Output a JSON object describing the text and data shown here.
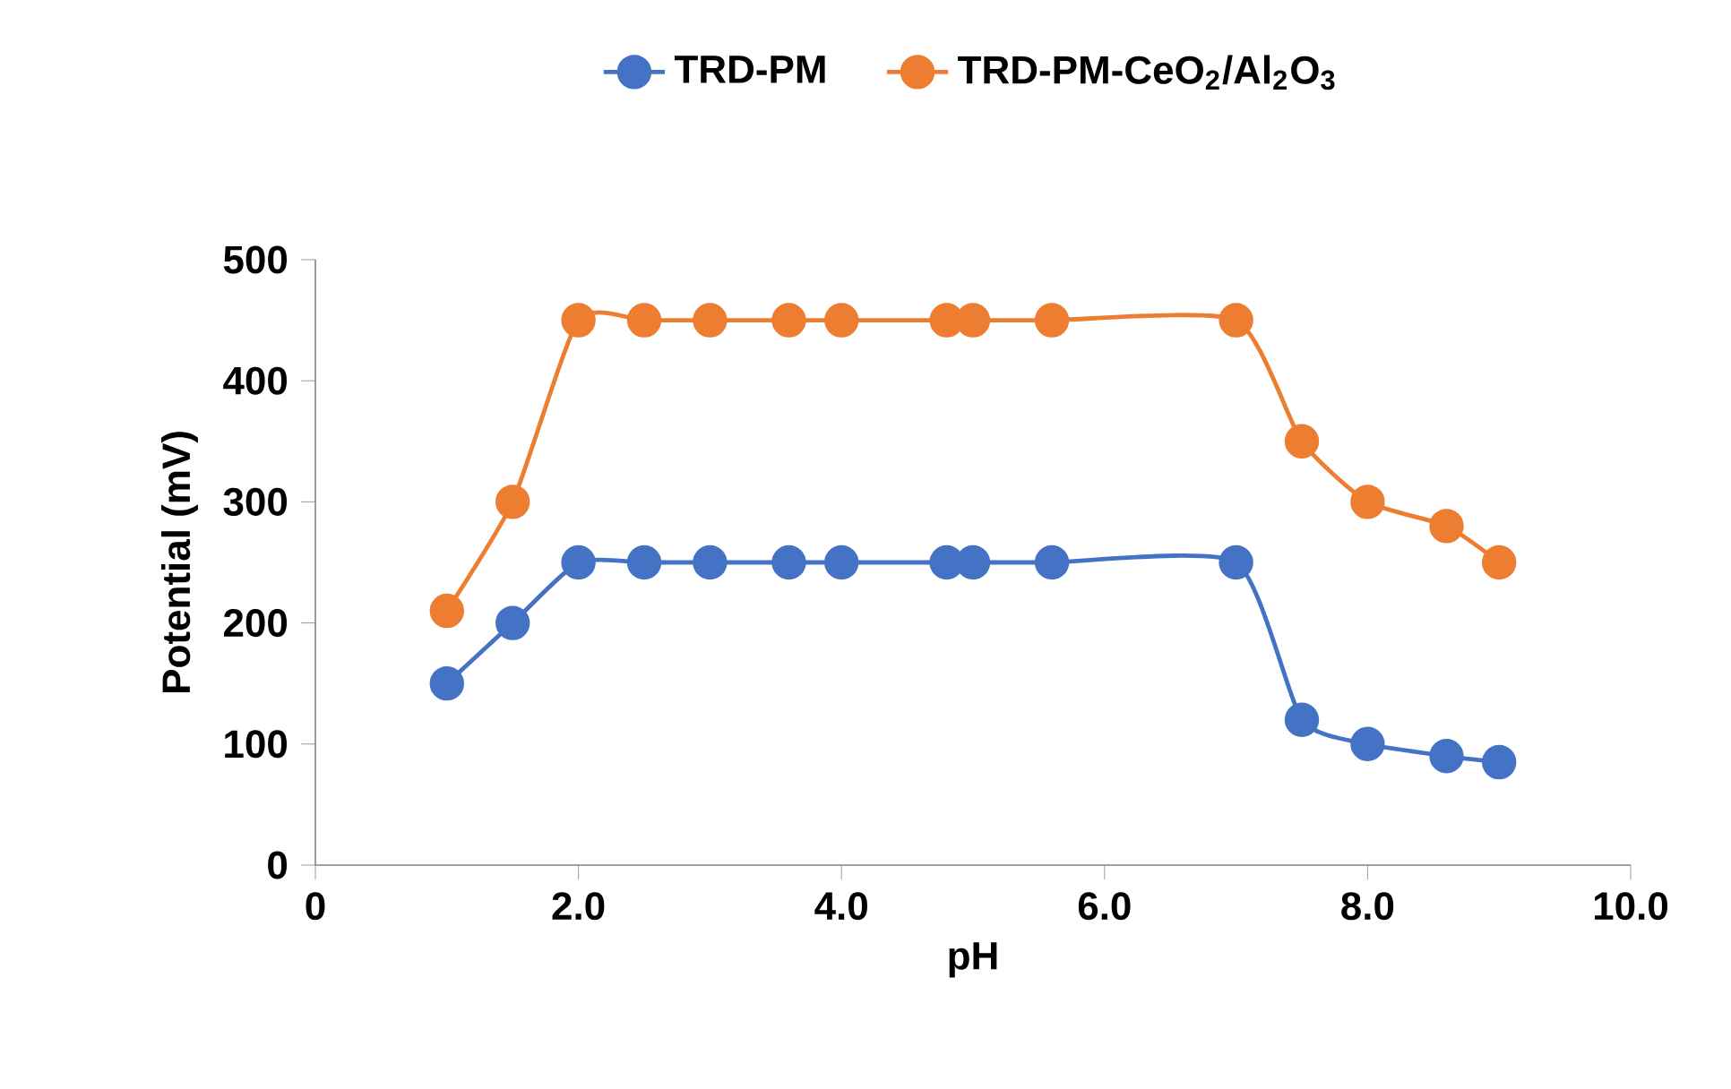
{
  "chart_data": {
    "type": "line",
    "xlabel": "pH",
    "ylabel": "Potential (mV)",
    "xlim": [
      0,
      10
    ],
    "ylim": [
      0,
      500
    ],
    "xticks": [
      0,
      {
        "value": 2,
        "label": "2.0"
      },
      {
        "value": 4,
        "label": "4.0"
      },
      {
        "value": 6,
        "label": "6.0"
      },
      {
        "value": 8,
        "label": "8.0"
      },
      {
        "value": 10,
        "label": "10.0"
      }
    ],
    "yticks": [
      0,
      100,
      200,
      300,
      400,
      500
    ],
    "x": [
      1.0,
      1.5,
      2.0,
      2.5,
      3.0,
      3.6,
      4.0,
      4.8,
      5.0,
      5.6,
      7.0,
      7.5,
      8.0,
      8.6,
      9.0
    ],
    "series": [
      {
        "name": "TRD-PM",
        "color": "#4472c4",
        "values": [
          150,
          200,
          250,
          250,
          250,
          250,
          250,
          250,
          250,
          250,
          250,
          120,
          100,
          90,
          85
        ]
      },
      {
        "name": "TRD-PM-CeO$_{2}$/Al$_{2}$O$_{3}$",
        "color": "#ed7d31",
        "values": [
          210,
          300,
          450,
          450,
          450,
          450,
          450,
          450,
          450,
          450,
          450,
          350,
          300,
          280,
          250
        ]
      }
    ],
    "marker": "circle",
    "legend": "top",
    "grid": false
  }
}
